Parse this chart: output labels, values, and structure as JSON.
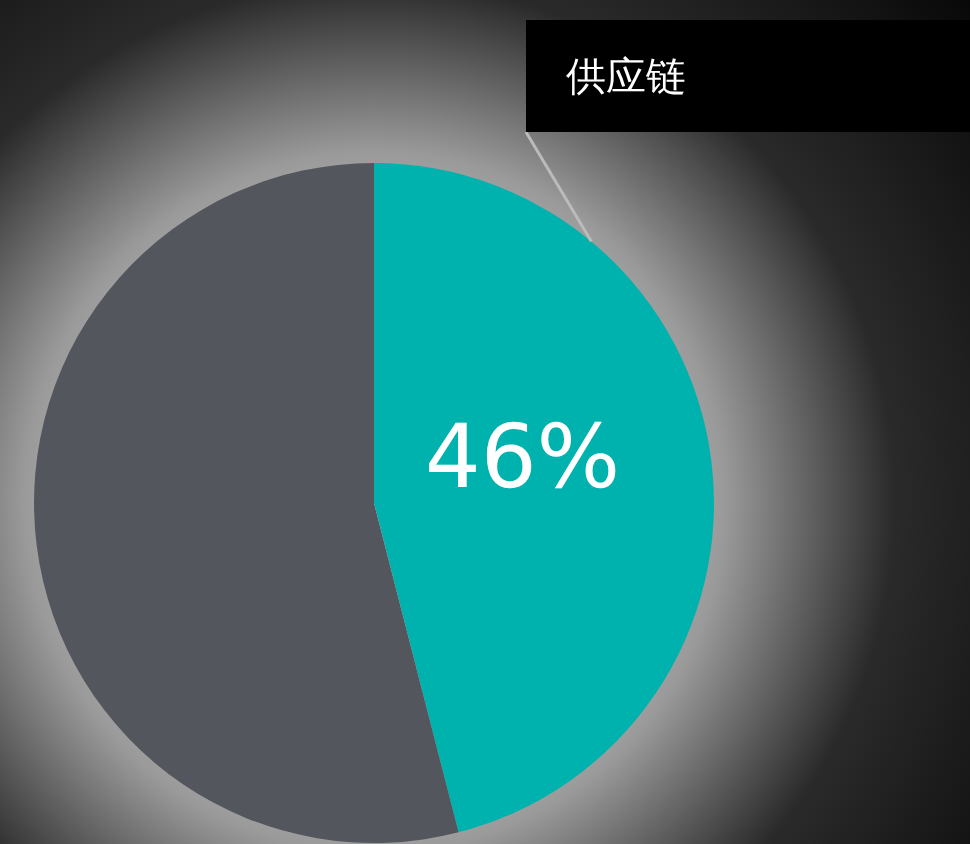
{
  "chart_data": {
    "type": "pie",
    "categories": [
      "供应链",
      null
    ],
    "values": [
      46,
      54
    ],
    "colors": [
      "#00b2ad",
      "#53565c"
    ],
    "value_labels": [
      "46%",
      null
    ],
    "legend": false
  }
}
